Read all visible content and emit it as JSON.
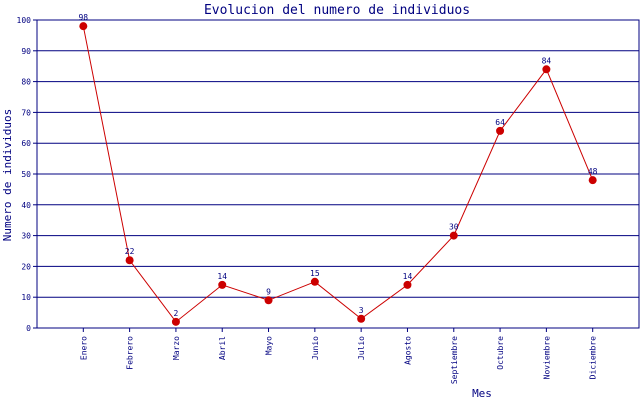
{
  "chart_data": {
    "type": "line",
    "title": "Evolucion del numero de individuos",
    "x_label": "Mes",
    "y_label": "Numero de individuos",
    "categories": [
      "Enero",
      "Febrero",
      "Marzo",
      "Abril",
      "Mayo",
      "Junio",
      "Julio",
      "Agosto",
      "Septiembre",
      "Octubre",
      "Noviembre",
      "Diciembre"
    ],
    "values": [
      98,
      22,
      2,
      14,
      9,
      15,
      3,
      14,
      30,
      64,
      84,
      48
    ],
    "color": "#cc0000",
    "marker_color": "#cc0000",
    "ylim": [
      0,
      100
    ],
    "yticks": [
      0,
      10,
      20,
      30,
      40,
      50,
      60,
      70,
      80,
      90,
      100
    ],
    "grid": true
  }
}
